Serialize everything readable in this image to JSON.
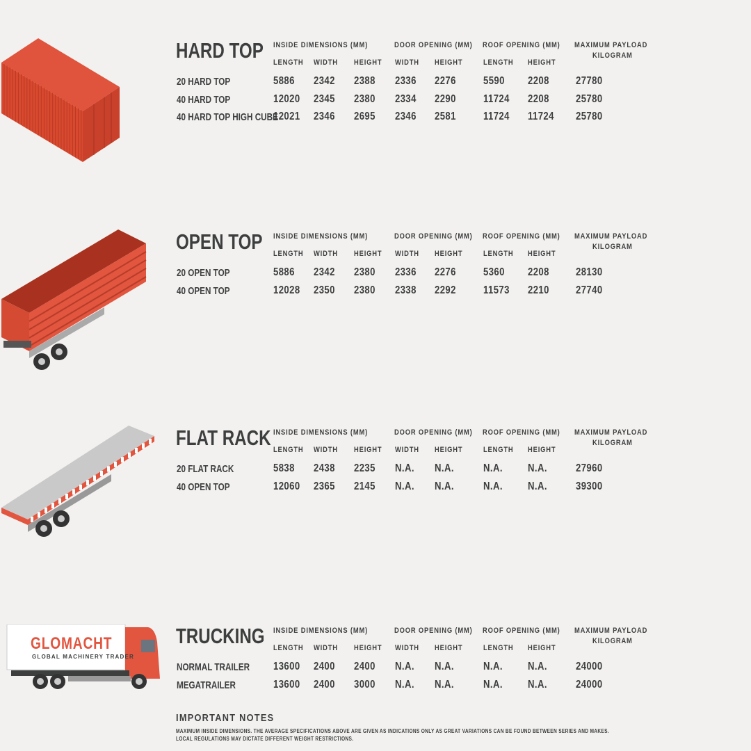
{
  "column_groups": [
    "INSIDE DIMENSIONS (MM)",
    "DOOR OPENING (MM)",
    "ROOF OPENING (MM)",
    "MAXIMUM PAYLOAD",
    "KILOGRAM"
  ],
  "sub_columns": [
    "LENGTH",
    "WIDTH",
    "HEIGHT",
    "WIDTH",
    "HEIGHT",
    "LENGTH",
    "HEIGHT"
  ],
  "colors": {
    "text": "#3d3f3f",
    "accent": "#e2553f",
    "background": "#f2f1ef"
  },
  "sections": [
    {
      "title": "HARD TOP",
      "illustration": "shipping-container",
      "rows": [
        {
          "label": "20 HARD TOP",
          "values": [
            "5886",
            "2342",
            "2388",
            "2336",
            "2276",
            "5590",
            "2208",
            "27780"
          ]
        },
        {
          "label": "40 HARD TOP",
          "values": [
            "12020",
            "2345",
            "2380",
            "2334",
            "2290",
            "11724",
            "2208",
            "25780"
          ]
        },
        {
          "label": "40 HARD TOP HIGH CUBE",
          "values": [
            "12021",
            "2346",
            "2695",
            "2346",
            "2581",
            "11724",
            "11724",
            "25780"
          ]
        }
      ]
    },
    {
      "title": "OPEN TOP",
      "illustration": "open-top-trailer",
      "rows": [
        {
          "label": "20 OPEN TOP",
          "values": [
            "5886",
            "2342",
            "2380",
            "2336",
            "2276",
            "5360",
            "2208",
            "28130"
          ]
        },
        {
          "label": "40 OPEN TOP",
          "values": [
            "12028",
            "2350",
            "2380",
            "2338",
            "2292",
            "11573",
            "2210",
            "27740"
          ]
        }
      ]
    },
    {
      "title": "FLAT RACK",
      "illustration": "flat-rack-trailer",
      "rows": [
        {
          "label": "20 FLAT RACK",
          "values": [
            "5838",
            "2438",
            "2235",
            "N.A.",
            "N.A.",
            "N.A.",
            "N.A.",
            "27960"
          ]
        },
        {
          "label": "40 OPEN TOP",
          "values": [
            "12060",
            "2365",
            "2145",
            "N.A.",
            "N.A.",
            "N.A.",
            "N.A.",
            "39300"
          ]
        }
      ]
    },
    {
      "title": "TRUCKING",
      "illustration": "truck",
      "rows": [
        {
          "label": "NORMAL TRAILER",
          "values": [
            "13600",
            "2400",
            "2400",
            "N.A.",
            "N.A.",
            "N.A.",
            "N.A.",
            "24000"
          ]
        },
        {
          "label": "MEGATRAILER",
          "values": [
            "13600",
            "2400",
            "3000",
            "N.A.",
            "N.A.",
            "N.A.",
            "N.A.",
            "24000"
          ]
        }
      ]
    }
  ],
  "truck_logo": {
    "brand": "GLOMACHT",
    "tagline": "GLOBAL MACHINERY TRADER"
  },
  "notes": {
    "title": "IMPORTANT NOTES",
    "lines": [
      "MAXIMUM INSIDE DIMENSIONS. THE AVERAGE SPECIFICATIONS ABOVE ARE GIVEN AS INDICATIONS ONLY AS GREAT VARIATIONS CAN BE FOUND BETWEEN SERIES AND MAKES.",
      "LOCAL REGULATIONS MAY DICTATE DIFFERENT WEIGHT RESTRICTIONS."
    ]
  }
}
